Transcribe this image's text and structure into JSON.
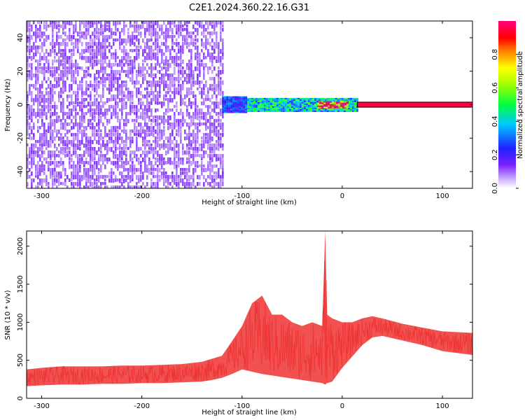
{
  "title": "C2E1.2024.360.22.16.G31",
  "chart_data": [
    {
      "type": "heatmap",
      "xlabel": "Height of straight line (km)",
      "ylabel": "Frequency (Hz)",
      "xlim": [
        -315,
        130
      ],
      "ylim": [
        -50,
        50
      ],
      "xticks": [
        -300,
        -200,
        -100,
        0,
        100
      ],
      "xtick_labels": [
        "-300",
        "-200",
        "-100",
        "0",
        "100"
      ],
      "yticks": [
        -40,
        -20,
        0,
        20,
        40
      ],
      "ytick_labels": [
        "-40",
        "-20",
        "0",
        "20",
        "40"
      ],
      "colorbar": {
        "label": "Normalized spectral amplitude",
        "range": [
          0,
          1
        ],
        "ticks": [
          0.0,
          0.2,
          0.4,
          0.6,
          0.8
        ],
        "tick_labels": [
          "0.0",
          "0.2",
          "0.4",
          "0.6",
          "0.8"
        ],
        "colormap": "rainbow (white → violet → blue → cyan → green → yellow → red → magenta)"
      },
      "regions": [
        {
          "x_range": [
            -315,
            -120
          ],
          "freq_range": [
            -50,
            50
          ],
          "amplitude": 0.1
        },
        {
          "x_range": [
            -120,
            -95
          ],
          "freq_range": [
            -5,
            5
          ],
          "amplitude": 0.25
        },
        {
          "x_range": [
            -95,
            15
          ],
          "freq_range": [
            -4,
            4
          ],
          "amplitude": 0.4
        },
        {
          "x_range": [
            -25,
            5
          ],
          "freq_range": [
            -2,
            2
          ],
          "amplitude": 0.9
        },
        {
          "x_range": [
            15,
            130
          ],
          "freq_range": [
            -1.5,
            1.5
          ],
          "amplitude": 0.95
        }
      ],
      "grid": false
    },
    {
      "type": "line",
      "xlabel": "Height of straight line (km)",
      "ylabel": "SNR (10 * v/v)",
      "xlim": [
        -315,
        130
      ],
      "ylim": [
        0,
        2200
      ],
      "xticks": [
        -300,
        -200,
        -100,
        0,
        100
      ],
      "xtick_labels": [
        "-300",
        "-200",
        "-100",
        "0",
        "100"
      ],
      "yticks": [
        0,
        500,
        1000,
        1500,
        2000
      ],
      "ytick_labels": [
        "0",
        "500",
        "1000",
        "1500",
        "2000"
      ],
      "series": [
        {
          "color": "#ee3333",
          "x": [
            -315,
            -300,
            -280,
            -260,
            -240,
            -220,
            -200,
            -180,
            -160,
            -140,
            -130,
            -120,
            -110,
            -100,
            -90,
            -80,
            -70,
            -60,
            -50,
            -40,
            -30,
            -20,
            -17,
            -15,
            -10,
            0,
            10,
            20,
            30,
            40,
            60,
            80,
            100,
            130
          ],
          "y_low": [
            160,
            170,
            180,
            180,
            190,
            190,
            200,
            200,
            210,
            220,
            240,
            270,
            320,
            380,
            350,
            320,
            300,
            280,
            260,
            240,
            220,
            200,
            180,
            200,
            220,
            400,
            550,
            700,
            800,
            820,
            760,
            700,
            620,
            570
          ],
          "y_high": [
            380,
            400,
            420,
            420,
            420,
            430,
            430,
            440,
            450,
            480,
            520,
            560,
            750,
            950,
            1250,
            1350,
            1100,
            1100,
            1000,
            950,
            1000,
            950,
            2200,
            1100,
            1050,
            1000,
            1000,
            1050,
            1080,
            1050,
            980,
            930,
            880,
            860
          ]
        }
      ],
      "grid": false
    }
  ]
}
